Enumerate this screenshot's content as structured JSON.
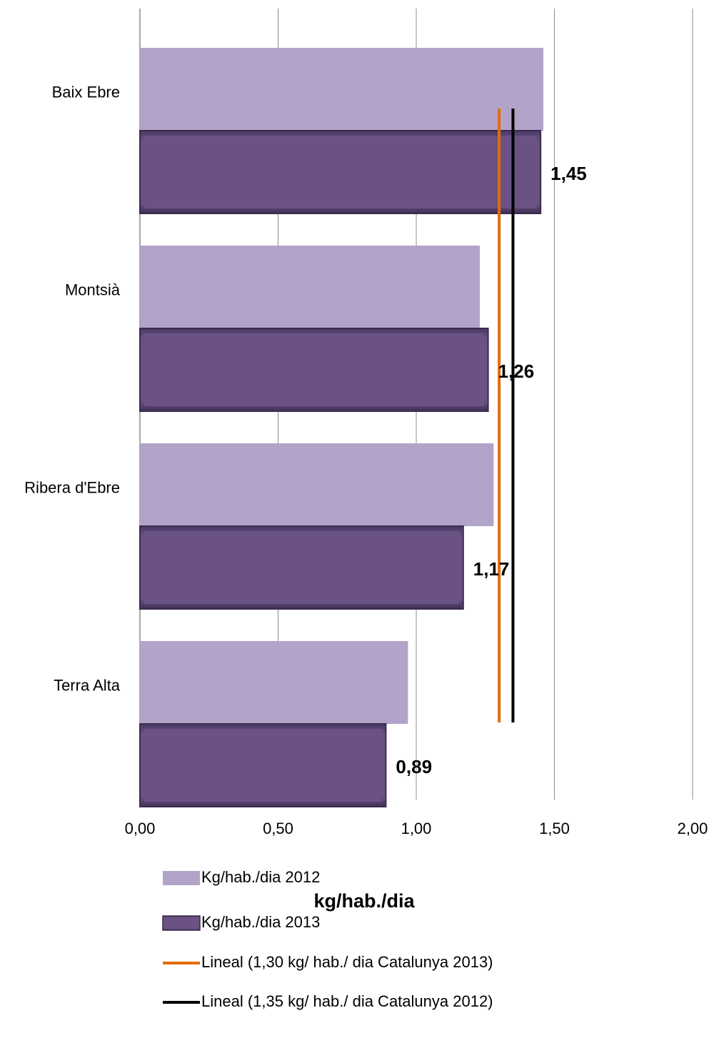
{
  "chart_data": {
    "type": "bar",
    "orientation": "horizontal",
    "categories": [
      "Baix Ebre",
      "Montsià",
      "Ribera d'Ebre",
      "Terra Alta"
    ],
    "series": [
      {
        "name": "Kg/hab./dia 2012",
        "values": [
          1.46,
          1.23,
          1.28,
          0.97
        ],
        "color": "#b2a3c9"
      },
      {
        "name": "Kg/hab./dia 2013",
        "values": [
          1.45,
          1.26,
          1.17,
          0.89
        ],
        "color": "#6a5285",
        "data_labels": [
          "1,45",
          "1,26",
          "1,17",
          "0,89"
        ]
      }
    ],
    "reference_lines": [
      {
        "name": "Lineal (1,30 kg/ hab./ dia Catalunya 2013)",
        "value": 1.3,
        "color": "#e36c0a"
      },
      {
        "name": "Lineal (1,35 kg/ hab./ dia Catalunya 2012)",
        "value": 1.35,
        "color": "#000000"
      }
    ],
    "xlim": [
      0,
      2.0
    ],
    "xticks": [
      0,
      0.5,
      1.0,
      1.5,
      2.0
    ],
    "xtick_labels": [
      "0,00",
      "0,50",
      "1,00",
      "1,50",
      "2,00"
    ],
    "xlabel": "kg/hab./dia",
    "grid": true,
    "legend_position": "bottom"
  }
}
